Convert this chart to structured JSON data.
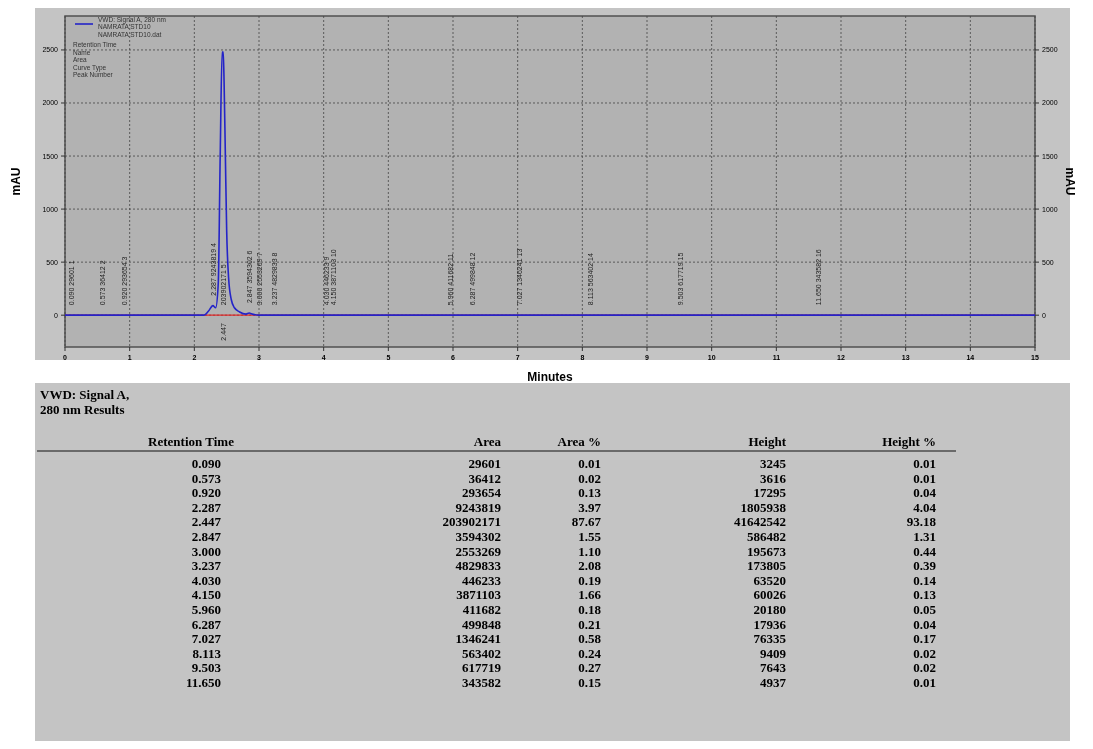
{
  "chart_data": [
    {
      "type": "line",
      "xlabel": "Minutes",
      "ylabel": "mAU",
      "y2label": "mAU",
      "x": [
        0,
        0.09,
        0.3,
        0.573,
        0.92,
        1.5,
        2.15,
        2.22,
        2.287,
        2.33,
        2.37,
        2.4,
        2.43,
        2.447,
        2.46,
        2.48,
        2.5,
        2.53,
        2.57,
        2.62,
        2.7,
        2.8,
        2.847,
        2.9,
        3.0,
        3.237,
        4.03,
        4.15,
        5,
        5.96,
        6.287,
        7.027,
        8.113,
        9.503,
        11.65,
        15
      ],
      "series": [
        {
          "name": "VWD: Signal A, 280 nm",
          "color": "#2424c8",
          "values": [
            0,
            0,
            0,
            0,
            0,
            0,
            0,
            40,
            90,
            70,
            300,
            1500,
            2480,
            2480,
            2200,
            1500,
            800,
            350,
            150,
            70,
            30,
            10,
            20,
            10,
            0,
            0,
            0,
            0,
            0,
            0,
            0,
            0,
            0,
            0,
            0,
            0
          ]
        }
      ],
      "xlim": [
        0,
        15
      ],
      "xticks": [
        0,
        1,
        2,
        3,
        4,
        5,
        6,
        7,
        8,
        9,
        10,
        11,
        12,
        13,
        14,
        15
      ],
      "ylim": [
        -300,
        2820
      ],
      "yticks": [
        0,
        500,
        1000,
        1500,
        2000,
        2500
      ],
      "y2lim": [
        -300,
        2820
      ],
      "y2ticks": [
        0,
        500,
        1000,
        1500,
        2000,
        2500
      ],
      "grid": true,
      "legend": "top left",
      "ref_lines": [
        {
          "axis": "y",
          "value": 0,
          "color": "#e02828"
        }
      ],
      "annotations": [
        "NAMRATA STD10",
        "NAMRATA STD10.dat",
        "Retention Time",
        "Name",
        "Area",
        "Curve Type",
        "Peak Number",
        {
          "text": "0.090 29601 1",
          "x": 0.09,
          "y": 0
        },
        {
          "text": "0.573 36412 2",
          "x": 0.573,
          "y": 0
        },
        {
          "text": "0.920 293654 3",
          "x": 0.92,
          "y": 0
        },
        {
          "text": "2.287 9243819 4",
          "x": 2.287,
          "y": 90
        },
        {
          "text": "203902171 5",
          "x": 2.447,
          "y": 0
        },
        {
          "text": "2.447",
          "x": 2.447,
          "y": 0
        },
        {
          "text": "2.847 3594302 6",
          "x": 2.847,
          "y": 20
        },
        {
          "text": "3.000 2553269 7",
          "x": 3.0,
          "y": 0
        },
        {
          "text": "3.237 4829833 8",
          "x": 3.237,
          "y": 0
        },
        {
          "text": "4.030 446233 9",
          "x": 4.03,
          "y": 0
        },
        {
          "text": "4.150 3871103 10",
          "x": 4.15,
          "y": 0
        },
        {
          "text": "5.960 411682 11",
          "x": 5.96,
          "y": 0
        },
        {
          "text": "6.287 499848 12",
          "x": 6.287,
          "y": 0
        },
        {
          "text": "7.027 1346241 13",
          "x": 7.027,
          "y": 0
        },
        {
          "text": "8.113 563402 14",
          "x": 8.113,
          "y": 0
        },
        {
          "text": "9.503 617719 15",
          "x": 9.503,
          "y": 0
        },
        {
          "text": "11.650 343582 16",
          "x": 11.65,
          "y": 0
        }
      ]
    },
    {
      "type": "other",
      "title": "VWD: Signal A, 280 nm Results",
      "categories": [
        "Retention Time",
        "Area",
        "Area %",
        "Height",
        "Height %"
      ],
      "cell_labels": [
        [
          "0.090",
          "29601",
          "0.01",
          "3245",
          "0.01"
        ],
        [
          "0.573",
          "36412",
          "0.02",
          "3616",
          "0.01"
        ],
        [
          "0.920",
          "293654",
          "0.13",
          "17295",
          "0.04"
        ],
        [
          "2.287",
          "9243819",
          "3.97",
          "1805938",
          "4.04"
        ],
        [
          "2.447",
          "203902171",
          "87.67",
          "41642542",
          "93.18"
        ],
        [
          "2.847",
          "3594302",
          "1.55",
          "586482",
          "1.31"
        ],
        [
          "3.000",
          "2553269",
          "1.10",
          "195673",
          "0.44"
        ],
        [
          "3.237",
          "4829833",
          "2.08",
          "173805",
          "0.39"
        ],
        [
          "4.030",
          "446233",
          "0.19",
          "63520",
          "0.14"
        ],
        [
          "4.150",
          "3871103",
          "1.66",
          "60026",
          "0.13"
        ],
        [
          "5.960",
          "411682",
          "0.18",
          "20180",
          "0.05"
        ],
        [
          "6.287",
          "499848",
          "0.21",
          "17936",
          "0.04"
        ],
        [
          "7.027",
          "1346241",
          "0.58",
          "76335",
          "0.17"
        ],
        [
          "8.113",
          "563402",
          "0.24",
          "9409",
          "0.02"
        ],
        [
          "9.503",
          "617719",
          "0.27",
          "7643",
          "0.02"
        ],
        [
          "11.650",
          "343582",
          "0.15",
          "4937",
          "0.01"
        ]
      ]
    }
  ]
}
